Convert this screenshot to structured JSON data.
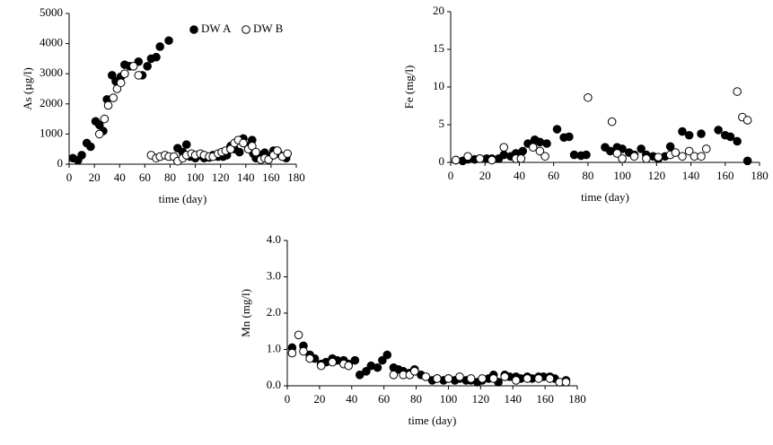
{
  "chart_data": [
    {
      "type": "scatter",
      "ylabel": "As (µg/l)",
      "xlabel": "time (day)",
      "xlim": [
        0,
        180
      ],
      "xticks": [
        0,
        20,
        40,
        60,
        80,
        100,
        120,
        140,
        160,
        180
      ],
      "ylim": [
        0,
        5000
      ],
      "yticks": [
        0,
        1000,
        2000,
        3000,
        4000,
        5000
      ],
      "legend": "upper right",
      "series": [
        {
          "name": "DW A",
          "color": "#000000",
          "fill": "#000000",
          "x": [
            3,
            7,
            10,
            14,
            17,
            21,
            24,
            27,
            30,
            34,
            37,
            41,
            44,
            48,
            55,
            58,
            62,
            65,
            69,
            72,
            79,
            86,
            90,
            93,
            96,
            100,
            104,
            107,
            111,
            114,
            118,
            122,
            125,
            128,
            131,
            135,
            138,
            142,
            145,
            146,
            148,
            152,
            155,
            159,
            162,
            166,
            172
          ],
          "values": [
            200,
            130,
            300,
            700,
            580,
            1420,
            1300,
            1100,
            2150,
            2950,
            2750,
            2900,
            3300,
            3250,
            3400,
            2950,
            3250,
            3500,
            3550,
            3900,
            4100,
            530,
            400,
            650,
            250,
            200,
            300,
            200,
            220,
            300,
            250,
            250,
            300,
            600,
            500,
            400,
            850,
            600,
            800,
            350,
            200,
            300,
            380,
            250,
            450,
            350,
            200
          ]
        },
        {
          "name": "DW B",
          "color": "#000000",
          "fill": "#ffffff",
          "x": [
            24,
            28,
            31,
            35,
            38,
            41,
            44,
            51,
            55,
            65,
            69,
            72,
            76,
            79,
            83,
            86,
            90,
            93,
            97,
            100,
            104,
            107,
            111,
            114,
            118,
            121,
            124,
            128,
            131,
            134,
            138,
            142,
            145,
            148,
            152,
            155,
            158,
            162,
            165,
            169,
            173
          ],
          "values": [
            1000,
            1500,
            1950,
            2200,
            2500,
            2700,
            3000,
            3250,
            2950,
            300,
            200,
            250,
            300,
            250,
            250,
            100,
            200,
            300,
            350,
            300,
            350,
            300,
            250,
            250,
            350,
            400,
            450,
            500,
            700,
            800,
            700,
            500,
            600,
            400,
            150,
            200,
            150,
            300,
            450,
            250,
            350
          ]
        }
      ]
    },
    {
      "type": "scatter",
      "ylabel": "Fe (mg/l)",
      "xlabel": "time (day)",
      "xlim": [
        0,
        180
      ],
      "xticks": [
        0,
        20,
        40,
        60,
        80,
        100,
        120,
        140,
        160,
        180
      ],
      "ylim": [
        0,
        20
      ],
      "yticks": [
        0,
        5,
        10,
        15,
        20
      ],
      "series": [
        {
          "color": "#000000",
          "fill": "#000000",
          "x": [
            3,
            7,
            10,
            14,
            17,
            21,
            24,
            28,
            31,
            35,
            38,
            42,
            45,
            49,
            52,
            56,
            62,
            66,
            69,
            72,
            76,
            79,
            90,
            93,
            97,
            100,
            104,
            107,
            111,
            114,
            118,
            121,
            125,
            128,
            135,
            139,
            146,
            156,
            160,
            163,
            167,
            173
          ],
          "values": [
            0.3,
            0.2,
            0.4,
            0.4,
            0.5,
            0.5,
            0.5,
            0.5,
            1.0,
            0.8,
            1.2,
            1.5,
            2.5,
            3.0,
            2.7,
            2.5,
            4.4,
            3.3,
            3.4,
            1.0,
            0.9,
            1.0,
            2.0,
            1.5,
            2.0,
            1.8,
            1.3,
            1.0,
            1.8,
            1.0,
            0.8,
            0.5,
            0.8,
            2.1,
            4.1,
            3.6,
            3.8,
            4.3,
            3.6,
            3.4,
            2.8,
            0.2
          ]
        },
        {
          "color": "#000000",
          "fill": "#ffffff",
          "x": [
            3,
            10,
            17,
            24,
            31,
            38,
            41,
            48,
            52,
            55,
            80,
            94,
            97,
            100,
            107,
            114,
            121,
            128,
            131,
            135,
            139,
            142,
            146,
            149,
            167,
            170,
            173
          ],
          "values": [
            0.3,
            0.8,
            0.5,
            0.3,
            2.0,
            0.5,
            0.5,
            2.0,
            1.5,
            0.8,
            8.6,
            5.4,
            1.2,
            0.5,
            0.8,
            0.5,
            0.7,
            1.0,
            1.3,
            0.8,
            1.5,
            0.8,
            0.8,
            1.8,
            9.4,
            6.0,
            5.6
          ]
        }
      ]
    },
    {
      "type": "scatter",
      "ylabel": "Mn (mg/l)",
      "xlabel": "time (day)",
      "xlim": [
        0,
        180
      ],
      "xticks": [
        0,
        20,
        40,
        60,
        80,
        100,
        120,
        140,
        160,
        180
      ],
      "ylim": [
        0,
        4
      ],
      "yticks": [
        {
          "value": 0,
          "label": "0.0"
        },
        {
          "value": 1,
          "label": "1.0"
        },
        {
          "value": 2,
          "label": "2.0"
        },
        {
          "value": 3,
          "label": "3.0"
        },
        {
          "value": 4,
          "label": "4.0"
        }
      ],
      "series": [
        {
          "color": "#000000",
          "fill": "#000000",
          "x": [
            3,
            10,
            14,
            17,
            21,
            24,
            28,
            31,
            35,
            38,
            42,
            45,
            49,
            52,
            56,
            59,
            62,
            66,
            69,
            72,
            76,
            79,
            83,
            90,
            93,
            97,
            100,
            104,
            107,
            111,
            114,
            118,
            121,
            125,
            128,
            131,
            135,
            138,
            142,
            145,
            149,
            152,
            156,
            159,
            163,
            166,
            173
          ],
          "values": [
            1.05,
            1.1,
            0.85,
            0.75,
            0.6,
            0.65,
            0.75,
            0.7,
            0.7,
            0.6,
            0.7,
            0.3,
            0.4,
            0.55,
            0.5,
            0.7,
            0.85,
            0.5,
            0.45,
            0.4,
            0.35,
            0.45,
            0.3,
            0.15,
            0.2,
            0.15,
            0.2,
            0.15,
            0.2,
            0.15,
            0.15,
            0.1,
            0.15,
            0.2,
            0.3,
            0.1,
            0.3,
            0.25,
            0.25,
            0.2,
            0.25,
            0.2,
            0.25,
            0.25,
            0.25,
            0.2,
            0.15
          ]
        },
        {
          "color": "#000000",
          "fill": "#ffffff",
          "x": [
            3,
            7,
            10,
            14,
            21,
            28,
            35,
            38,
            66,
            72,
            76,
            79,
            86,
            93,
            100,
            107,
            114,
            121,
            128,
            135,
            142,
            149,
            156,
            163,
            169,
            173
          ],
          "values": [
            0.9,
            1.4,
            0.95,
            0.75,
            0.55,
            0.65,
            0.6,
            0.55,
            0.3,
            0.3,
            0.3,
            0.4,
            0.25,
            0.2,
            0.2,
            0.25,
            0.2,
            0.2,
            0.2,
            0.25,
            0.15,
            0.2,
            0.2,
            0.2,
            0.1,
            0.1
          ]
        }
      ]
    }
  ]
}
